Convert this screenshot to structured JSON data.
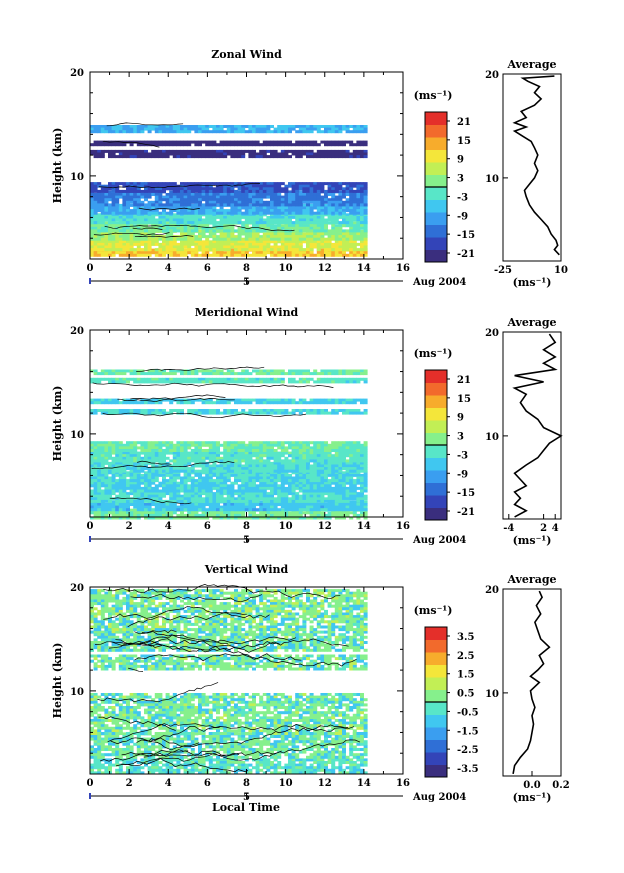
{
  "chart_data": [
    {
      "panel": "zonal",
      "type": "heatmap",
      "title": "Zonal Wind",
      "ylabel": "Height (km)",
      "xlim": [
        0,
        16
      ],
      "ylim": [
        2,
        20
      ],
      "xticks": [
        "0",
        "2",
        "4",
        "6",
        "8",
        "10",
        "12",
        "14",
        "16"
      ],
      "ytick_labels": [
        "20",
        "10"
      ],
      "date_mark": "5",
      "date_label": "Aug 2004",
      "colorbar_unit": "(ms⁻¹)",
      "colorbar_ticks": [
        "21",
        "15",
        "9",
        "3",
        "-3",
        "-9",
        "-15",
        "-21"
      ],
      "colorbar_range": [
        -24,
        24
      ],
      "layers": [
        {
          "from": 2.3,
          "to": 3.0,
          "value": 12
        },
        {
          "from": 3.0,
          "to": 3.8,
          "value": 8
        },
        {
          "from": 3.8,
          "to": 4.8,
          "value": 4
        },
        {
          "from": 4.8,
          "to": 5.6,
          "value": 0
        },
        {
          "from": 5.6,
          "to": 6.4,
          "value": -3
        },
        {
          "from": 6.4,
          "to": 7.3,
          "value": -9
        },
        {
          "from": 7.3,
          "to": 8.6,
          "value": -13
        },
        {
          "from": 8.6,
          "to": 9.4,
          "value": -17
        },
        {
          "from": 11.9,
          "to": 12.5,
          "value": -22
        },
        {
          "from": 13.0,
          "to": 13.4,
          "value": -23
        },
        {
          "from": 14.3,
          "to": 14.9,
          "value": -8
        }
      ],
      "profile": {
        "title": "Average",
        "xlabel": "(ms⁻¹)",
        "xlim": [
          -25,
          10
        ],
        "xtick_labels": [
          "-25",
          "10"
        ],
        "ytick_labels": [
          "20",
          "10"
        ],
        "points": [
          [
            9,
            2.6
          ],
          [
            6,
            3.1
          ],
          [
            8,
            3.5
          ],
          [
            7,
            4.0
          ],
          [
            4,
            4.6
          ],
          [
            2,
            5.3
          ],
          [
            -2,
            6.0
          ],
          [
            -6,
            6.7
          ],
          [
            -9,
            7.4
          ],
          [
            -11,
            8.2
          ],
          [
            -12,
            8.8
          ],
          [
            -9,
            9.4
          ],
          [
            -6,
            10.0
          ],
          [
            -4,
            10.7
          ],
          [
            -6,
            11.4
          ],
          [
            -4,
            12.2
          ],
          [
            -6,
            12.9
          ],
          [
            -8,
            13.5
          ],
          [
            -13,
            14.0
          ],
          [
            -18,
            14.5
          ],
          [
            -11,
            14.9
          ],
          [
            -18,
            15.3
          ],
          [
            -11,
            15.8
          ],
          [
            -14,
            16.4
          ],
          [
            -6,
            17.0
          ],
          [
            -2,
            17.6
          ],
          [
            -6,
            18.2
          ],
          [
            -3,
            18.8
          ],
          [
            -10,
            19.3
          ],
          [
            -13,
            19.6
          ],
          [
            6,
            19.8
          ]
        ]
      }
    },
    {
      "panel": "meridional",
      "type": "heatmap",
      "title": "Meridional Wind",
      "ylabel": "Height (km)",
      "xlim": [
        0,
        16
      ],
      "ylim": [
        2,
        20
      ],
      "xticks": [
        "0",
        "2",
        "4",
        "6",
        "8",
        "10",
        "12",
        "14",
        "16"
      ],
      "ytick_labels": [
        "20",
        "10"
      ],
      "date_mark": "5",
      "date_label": "Aug 2004",
      "colorbar_unit": "(ms⁻¹)",
      "colorbar_ticks": [
        "21",
        "15",
        "9",
        "3",
        "-3",
        "-9",
        "-15",
        "-21"
      ],
      "colorbar_range": [
        -24,
        24
      ],
      "layers": [
        {
          "from": 2.0,
          "to": 2.8,
          "value": 1
        },
        {
          "from": 2.8,
          "to": 3.6,
          "value": -6
        },
        {
          "from": 3.6,
          "to": 4.4,
          "value": -3
        },
        {
          "from": 4.4,
          "to": 5.4,
          "value": -5
        },
        {
          "from": 5.4,
          "to": 6.4,
          "value": -4
        },
        {
          "from": 6.4,
          "to": 7.3,
          "value": -3
        },
        {
          "from": 7.3,
          "to": 8.3,
          "value": -2
        },
        {
          "from": 8.3,
          "to": 9.3,
          "value": 0
        },
        {
          "from": 11.9,
          "to": 12.4,
          "value": -4
        },
        {
          "from": 13.1,
          "to": 13.4,
          "value": -5
        },
        {
          "from": 14.9,
          "to": 15.4,
          "value": -2
        },
        {
          "from": 15.8,
          "to": 16.2,
          "value": 0
        }
      ],
      "profile": {
        "title": "Average",
        "xlabel": "(ms⁻¹)",
        "xlim": [
          -5,
          5
        ],
        "xtick_labels": [
          "-4",
          "2",
          "4"
        ],
        "ytick_labels": [
          "20",
          "10"
        ],
        "points": [
          [
            -3,
            2.2
          ],
          [
            -1,
            2.8
          ],
          [
            -3,
            3.4
          ],
          [
            -2,
            4.0
          ],
          [
            -3,
            4.6
          ],
          [
            -1,
            5.2
          ],
          [
            -2,
            5.8
          ],
          [
            -3,
            6.4
          ],
          [
            -1,
            7.2
          ],
          [
            1,
            7.9
          ],
          [
            2,
            8.6
          ],
          [
            3,
            9.3
          ],
          [
            5,
            10.0
          ],
          [
            2,
            10.8
          ],
          [
            1,
            11.6
          ],
          [
            -1,
            12.4
          ],
          [
            -2,
            13.2
          ],
          [
            -1,
            14.0
          ],
          [
            -3,
            14.6
          ],
          [
            2,
            15.2
          ],
          [
            -3,
            15.8
          ],
          [
            4,
            16.4
          ],
          [
            2,
            17.0
          ],
          [
            4,
            17.6
          ],
          [
            2,
            18.3
          ],
          [
            4,
            19.0
          ],
          [
            3,
            19.8
          ]
        ]
      }
    },
    {
      "panel": "vertical",
      "type": "heatmap",
      "title": "Vertical Wind",
      "ylabel": "Height (km)",
      "xlabel": "Local Time",
      "xlim": [
        0,
        16
      ],
      "ylim": [
        2,
        20
      ],
      "xticks": [
        "0",
        "2",
        "4",
        "6",
        "8",
        "10",
        "12",
        "14",
        "16"
      ],
      "ytick_labels": [
        "20",
        "10"
      ],
      "date_mark": "5",
      "date_label": "Aug 2004",
      "colorbar_unit": "(ms⁻¹)",
      "colorbar_ticks": [
        "3.5",
        "2.5",
        "1.5",
        "0.5",
        "-0.5",
        "-1.5",
        "-2.5",
        "-3.5"
      ],
      "colorbar_range": [
        -4,
        4
      ],
      "layers": [
        {
          "from": 2.0,
          "to": 3.5,
          "value": -0.2
        },
        {
          "from": 3.5,
          "to": 6.0,
          "value": 0.2
        },
        {
          "from": 6.0,
          "to": 9.8,
          "value": 0.3
        },
        {
          "from": 12.0,
          "to": 13.5,
          "value": 0.3
        },
        {
          "from": 14.0,
          "to": 15.8,
          "value": 0.3
        },
        {
          "from": 16.0,
          "to": 19.8,
          "value": 0.4
        }
      ],
      "profile": {
        "title": "Average",
        "xlabel": "(ms⁻¹)",
        "xlim": [
          -0.2,
          0.2
        ],
        "xtick_labels": [
          "0.0",
          "0.2"
        ],
        "ytick_labels": [
          "20",
          "10"
        ],
        "points": [
          [
            -0.13,
            2.2
          ],
          [
            -0.12,
            3.0
          ],
          [
            -0.08,
            3.8
          ],
          [
            -0.03,
            4.6
          ],
          [
            -0.01,
            5.4
          ],
          [
            0.0,
            6.2
          ],
          [
            0.01,
            7.0
          ],
          [
            0.0,
            7.8
          ],
          [
            0.02,
            8.6
          ],
          [
            0.0,
            9.4
          ],
          [
            -0.01,
            10.2
          ],
          [
            0.05,
            11.0
          ],
          [
            -0.01,
            11.6
          ],
          [
            0.04,
            12.2
          ],
          [
            0.08,
            12.8
          ],
          [
            0.05,
            13.6
          ],
          [
            0.12,
            14.4
          ],
          [
            0.06,
            15.2
          ],
          [
            0.04,
            16.0
          ],
          [
            0.02,
            16.8
          ],
          [
            0.06,
            17.6
          ],
          [
            0.03,
            18.4
          ],
          [
            0.07,
            19.2
          ],
          [
            0.05,
            19.8
          ]
        ]
      }
    }
  ]
}
